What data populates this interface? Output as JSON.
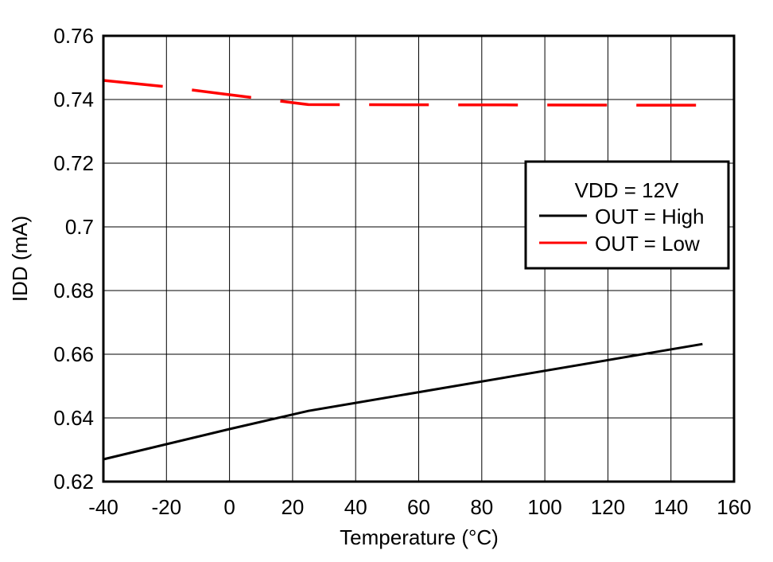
{
  "chart_data": {
    "type": "line",
    "title": "",
    "xlabel": "Temperature (°C)",
    "ylabel": "IDD (mA)",
    "xlim": [
      -40,
      160
    ],
    "ylim": [
      0.62,
      0.76
    ],
    "xticks": [
      "-40",
      "-20",
      "0",
      "20",
      "40",
      "60",
      "80",
      "100",
      "120",
      "140",
      "160"
    ],
    "yticks": [
      "0.62",
      "0.64",
      "0.66",
      "0.68",
      "0.7",
      "0.72",
      "0.74",
      "0.76"
    ],
    "grid": true,
    "legend": {
      "placement": "right",
      "title": "VDD = 12V"
    },
    "series": [
      {
        "name": "OUT = High",
        "color": "#000000",
        "style": "solid",
        "x": [
          -40,
          0,
          25,
          150
        ],
        "y": [
          0.627,
          0.6365,
          0.6422,
          0.6632
        ]
      },
      {
        "name": "OUT = Low",
        "color": "#ff0000",
        "style": "dashed",
        "x": [
          -40,
          -20,
          0,
          25,
          150
        ],
        "y": [
          0.746,
          0.744,
          0.7415,
          0.7384,
          0.7382
        ]
      }
    ]
  }
}
